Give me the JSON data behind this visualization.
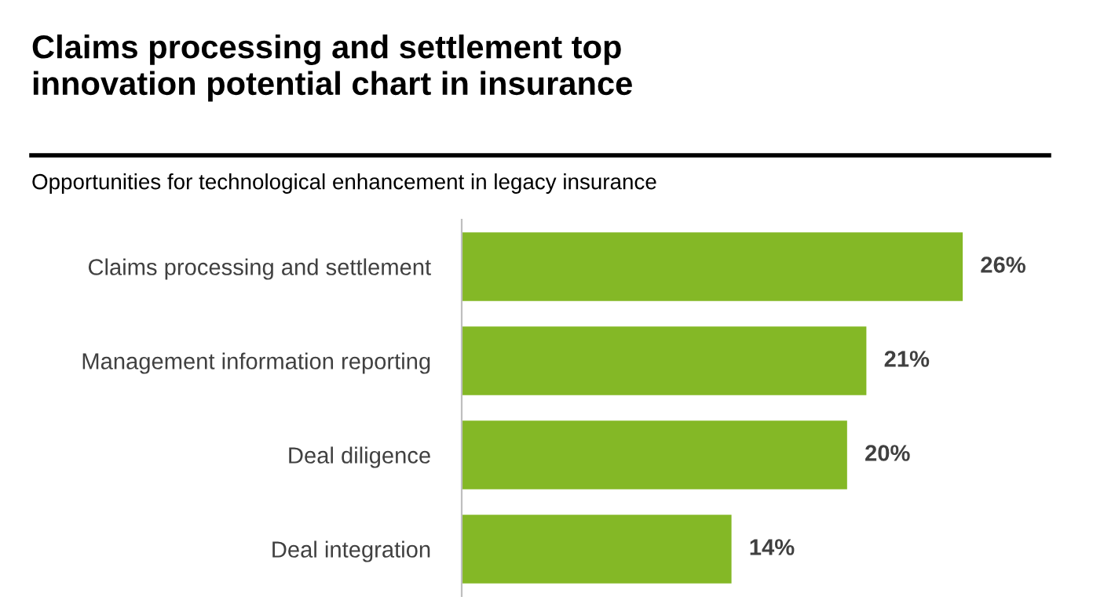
{
  "chart_data": {
    "type": "bar",
    "orientation": "horizontal",
    "title": "Claims processing and settlement top\ninnovation potential chart in insurance",
    "subtitle": "Opportunities for technological enhancement in legacy insurance",
    "categories": [
      "Claims processing and settlement",
      "Management information reporting",
      "Deal diligence",
      "Deal integration"
    ],
    "values": [
      26,
      21,
      20,
      14
    ],
    "value_labels": [
      "26%",
      "21%",
      "20%",
      "14%"
    ],
    "color": "#84b826",
    "tick_labels": "y",
    "grid": false,
    "legend": false
  }
}
